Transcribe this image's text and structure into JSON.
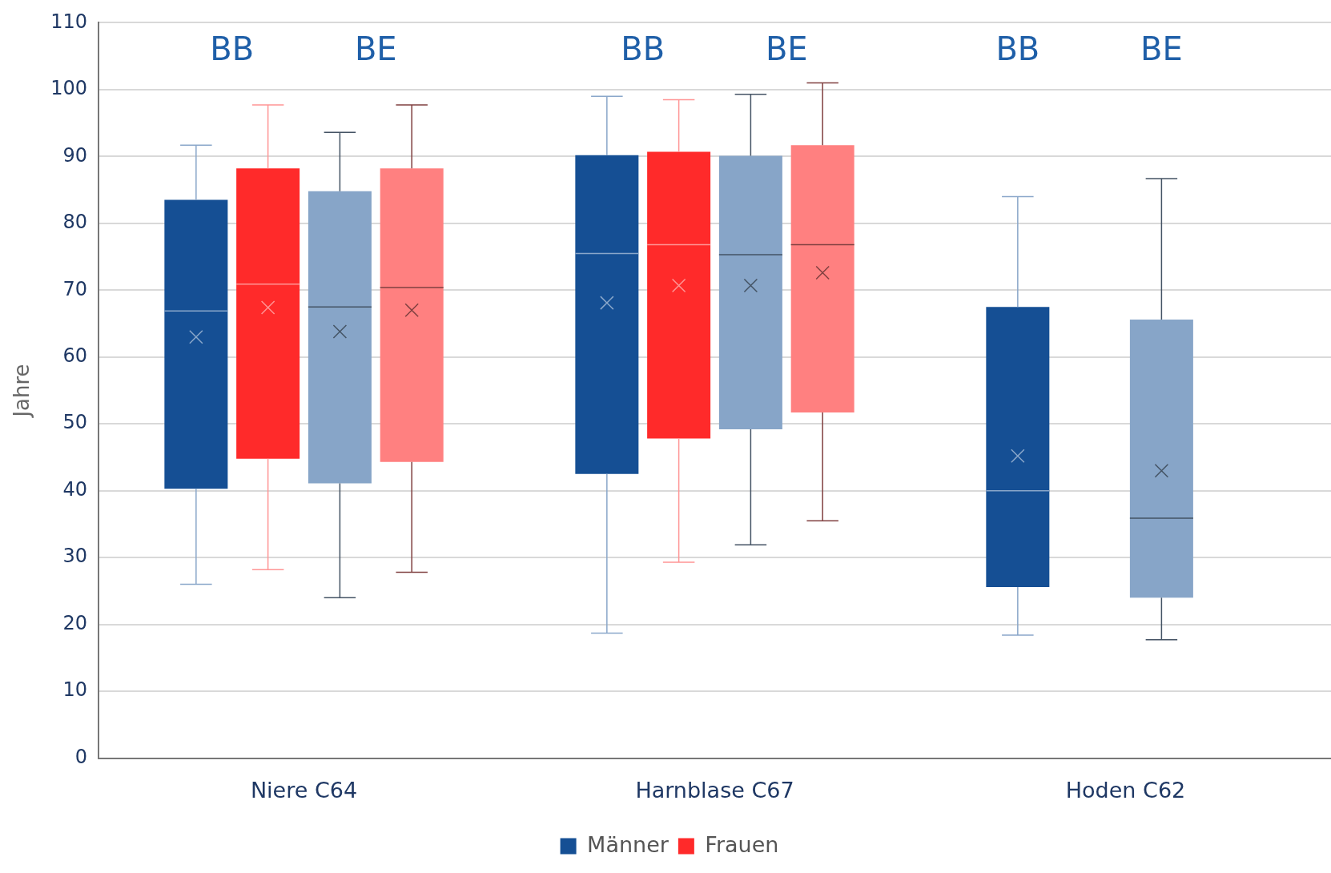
{
  "chart_data": {
    "type": "box",
    "ylabel": "Jahre",
    "categories": [
      "Niere C64",
      "Harnblase C67",
      "Hoden C62"
    ],
    "ylim": [
      0,
      110
    ],
    "yticks": [
      0,
      10,
      20,
      30,
      40,
      50,
      60,
      70,
      80,
      90,
      100,
      110
    ],
    "grid": "y",
    "legend": "bottom",
    "annotations": [
      "BB",
      "BE",
      "BB",
      "BE",
      "BB",
      "BE"
    ],
    "series": [
      {
        "name": "Männer",
        "color": "#154f94",
        "boxes": [
          {
            "low": 26,
            "q1": 40.3,
            "median": 66.9,
            "q3": 83.5,
            "high": 91.7,
            "mean": 63
          },
          {
            "low": 18.7,
            "q1": 42.5,
            "median": 75.5,
            "q3": 90.2,
            "high": 99,
            "mean": 68.1
          },
          {
            "low": 18.4,
            "q1": 25.6,
            "median": 40,
            "q3": 67.5,
            "high": 84,
            "mean": 45.2
          }
        ]
      },
      {
        "name": "Frauen",
        "color": "#ff2a2a",
        "boxes": [
          {
            "low": 28.2,
            "q1": 44.8,
            "median": 70.9,
            "q3": 88.2,
            "high": 97.7,
            "mean": 67.4
          },
          {
            "low": 29.3,
            "q1": 47.8,
            "median": 76.8,
            "q3": 90.7,
            "high": 98.5,
            "mean": 70.7
          },
          null
        ]
      },
      {
        "color": "#87a5c8",
        "boxes": [
          {
            "low": 24,
            "q1": 41.1,
            "median": 67.5,
            "q3": 84.8,
            "high": 93.6,
            "mean": 63.8
          },
          {
            "low": 31.9,
            "q1": 49.2,
            "median": 75.3,
            "q3": 90.1,
            "high": 99.3,
            "mean": 70.7
          },
          {
            "low": 17.7,
            "q1": 24,
            "median": 35.9,
            "q3": 65.6,
            "high": 86.7,
            "mean": 43
          }
        ]
      },
      {
        "color": "#ff8080",
        "boxes": [
          {
            "low": 27.8,
            "q1": 44.3,
            "median": 70.4,
            "q3": 88.2,
            "high": 97.7,
            "mean": 67
          },
          {
            "low": 35.5,
            "q1": 51.7,
            "median": 76.8,
            "q3": 91.7,
            "high": 101,
            "mean": 72.6
          },
          null
        ]
      }
    ]
  }
}
